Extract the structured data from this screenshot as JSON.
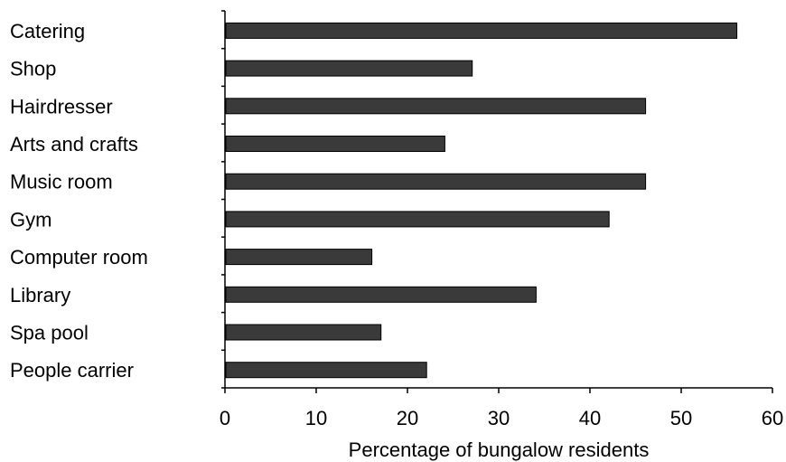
{
  "chart_data": {
    "type": "bar",
    "orientation": "horizontal",
    "categories": [
      "Catering",
      "Shop",
      "Hairdresser",
      "Arts and crafts",
      "Music room",
      "Gym",
      "Computer room",
      "Library",
      "Spa pool",
      "People carrier"
    ],
    "values": [
      56,
      27,
      46,
      24,
      46,
      42,
      16,
      34,
      17,
      22
    ],
    "xlabel": "Percentage of bungalow residents",
    "ylabel": "",
    "title": "",
    "xlim": [
      0,
      60
    ],
    "xticks": [
      "0",
      "10",
      "20",
      "30",
      "40",
      "50",
      "60"
    ],
    "grid": false,
    "bar_color": "#3a3a3a"
  }
}
